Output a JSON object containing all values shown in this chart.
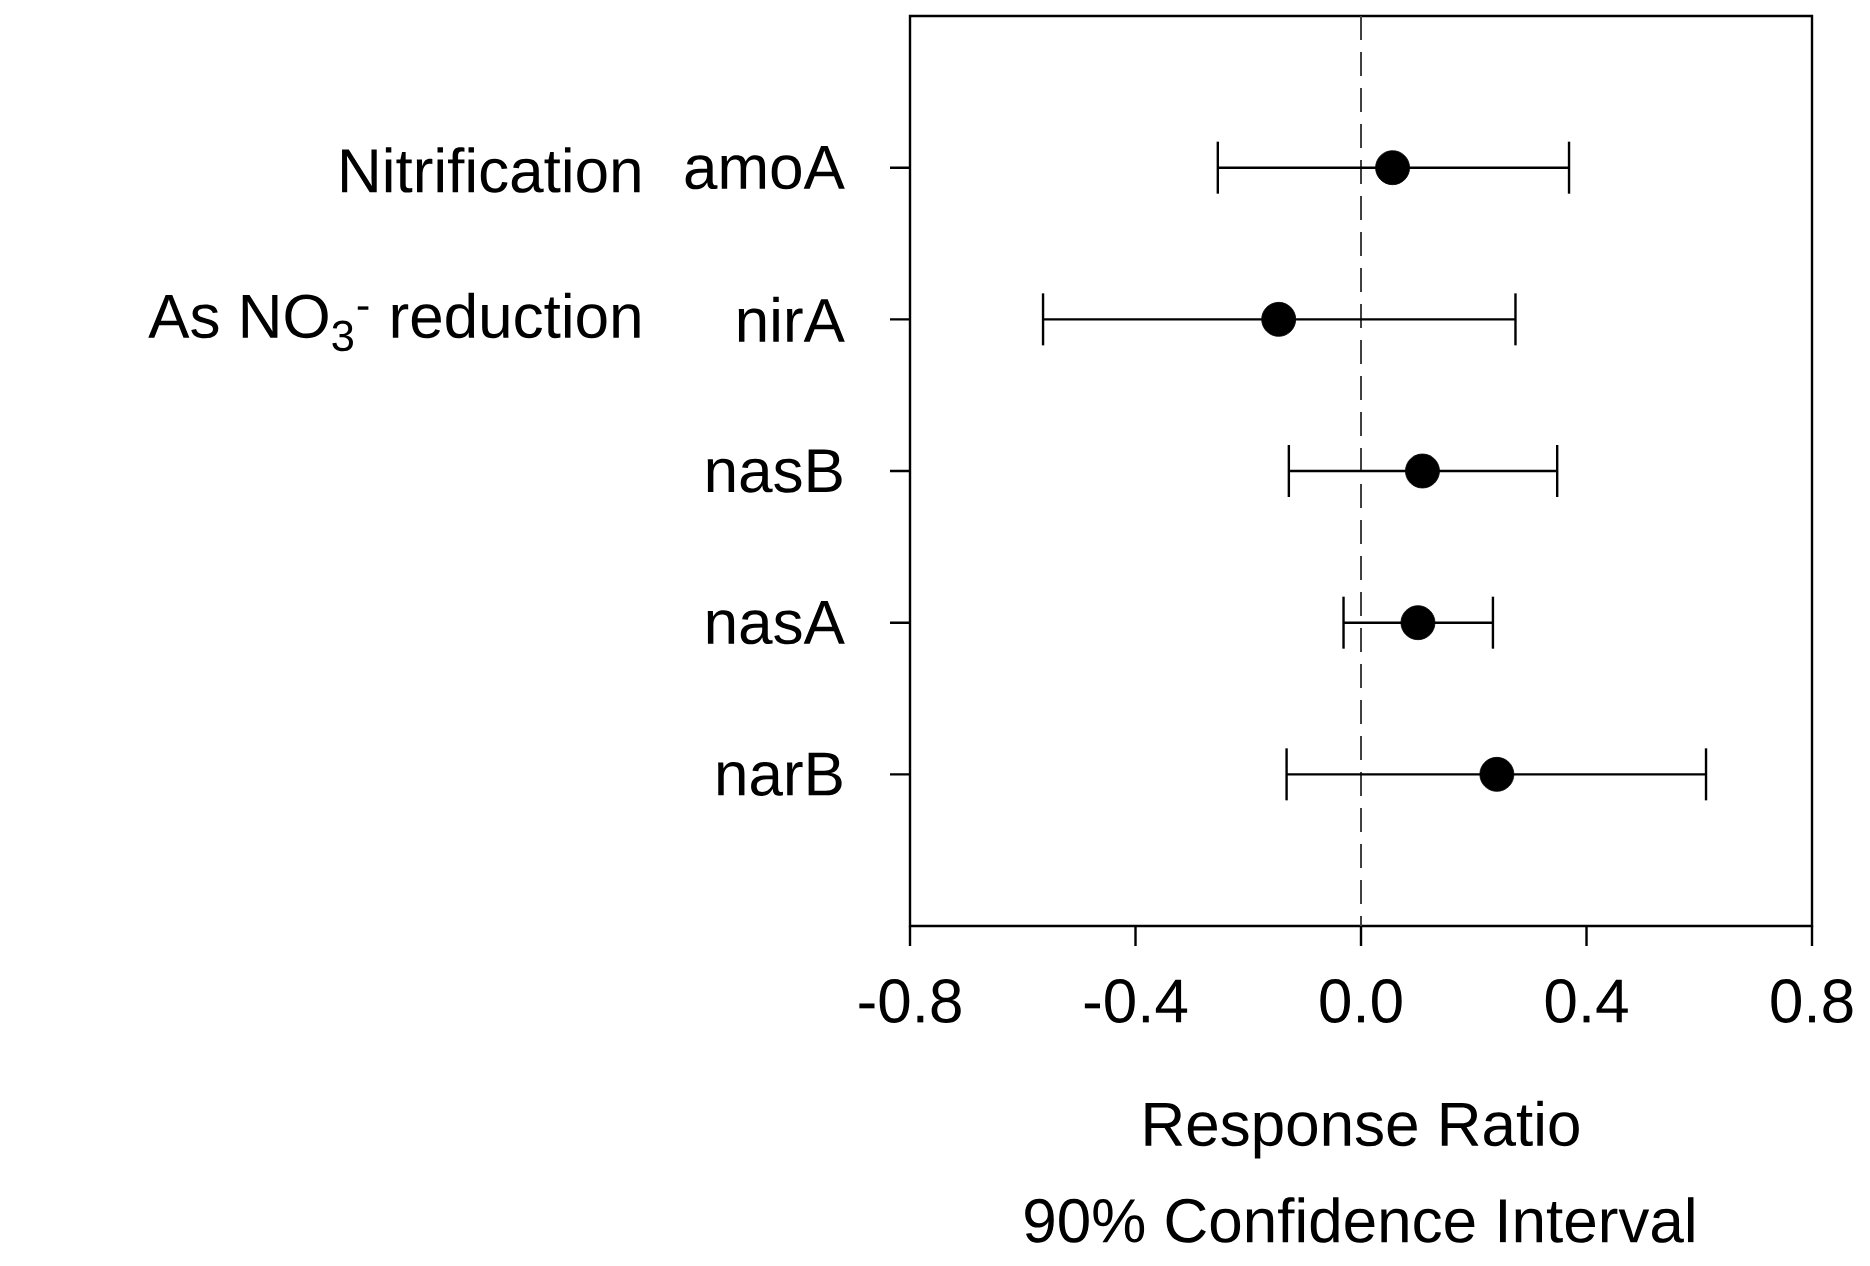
{
  "chart_data": {
    "type": "scatter",
    "orientation": "horizontal",
    "xlabel": "Response Ratio",
    "categories": [
      "amoA",
      "nirA",
      "nasB",
      "nasA",
      "narB"
    ],
    "values": [
      0.056,
      -0.146,
      0.109,
      0.101,
      0.241
    ],
    "errors": [
      [
        -0.254,
        0.369
      ],
      [
        -0.564,
        0.274
      ],
      [
        -0.128,
        0.348
      ],
      [
        -0.031,
        0.234
      ],
      [
        -0.132,
        0.612
      ]
    ],
    "color": "#000000",
    "marker": "circle",
    "xlim": [
      -0.8,
      0.8
    ],
    "xticks": [
      -0.8,
      -0.4,
      {
        "value": 0,
        "label": "0.0"
      },
      0.4,
      0.8
    ],
    "ref_lines": [
      {
        "axis": "x",
        "value": 0,
        "line_style": "dashed",
        "color": "#404040"
      }
    ],
    "annotations": [
      "Nitrification",
      "As NO$_{3}$$^{-}$ reduction",
      "90% Confidence Interval"
    ]
  }
}
